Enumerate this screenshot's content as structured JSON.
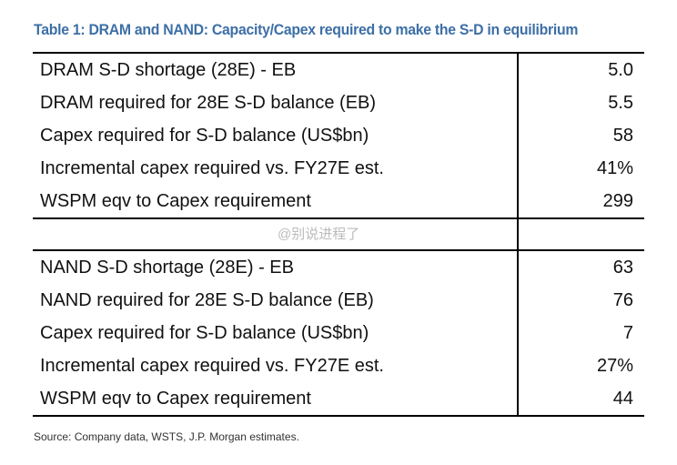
{
  "title": "Table 1: DRAM and NAND: Capacity/Capex required to make the S-D in equilibrium",
  "sections": [
    {
      "rows": [
        [
          "DRAM S-D shortage (28E) - EB",
          "5.0"
        ],
        [
          "DRAM required for 28E S-D balance (EB)",
          "5.5"
        ],
        [
          "Capex required for S-D balance (US$bn)",
          "58"
        ],
        [
          "Incremental capex required vs. FY27E est.",
          "41%"
        ],
        [
          "WSPM eqv to Capex requirement",
          "299"
        ]
      ]
    },
    {
      "rows": [
        [
          "NAND S-D shortage (28E) - EB",
          "63"
        ],
        [
          "NAND required for 28E S-D balance (EB)",
          "76"
        ],
        [
          "Capex required for S-D balance (US$bn)",
          "7"
        ],
        [
          "Incremental capex required vs. FY27E est.",
          "27%"
        ],
        [
          "WSPM eqv to Capex requirement",
          "44"
        ]
      ]
    }
  ],
  "watermark": "@别说进程了",
  "source": "Source: Company data, WSTS, J.P. Morgan estimates."
}
